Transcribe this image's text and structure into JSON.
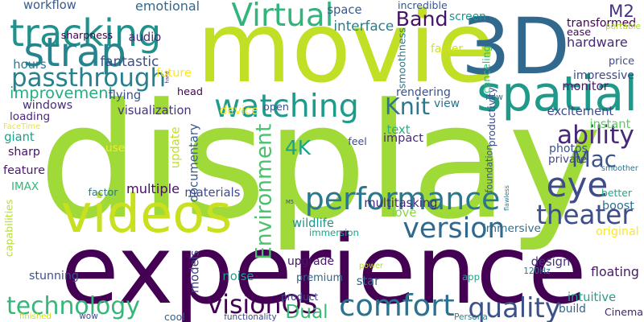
{
  "canvas": {
    "background": "#ffffff"
  },
  "words": [
    {
      "text": "display",
      "color": "#a0da39"
    },
    {
      "text": "experience",
      "color": "#440154"
    },
    {
      "text": "movie",
      "color": "#c0df25"
    },
    {
      "text": "3D",
      "color": "#31688e"
    },
    {
      "text": "videos",
      "color": "#c8e020"
    },
    {
      "text": "spatial",
      "color": "#1f9a8a"
    },
    {
      "text": "tracking",
      "color": "#20928c"
    },
    {
      "text": "strap",
      "color": "#25848e"
    },
    {
      "text": "Virtual",
      "color": "#31b57b"
    },
    {
      "text": "watching",
      "color": "#1e9b8a"
    },
    {
      "text": "performance",
      "color": "#2a788e"
    },
    {
      "text": "passthrough",
      "color": "#26818e"
    },
    {
      "text": "comfort",
      "color": "#2c728e"
    },
    {
      "text": "technology",
      "color": "#35b779"
    },
    {
      "text": "quality",
      "color": "#3b518b"
    },
    {
      "text": "version",
      "color": "#30698e"
    },
    {
      "text": "theater",
      "color": "#3d4e8a"
    },
    {
      "text": "visionOS",
      "color": "#440154"
    },
    {
      "text": "Environment",
      "color": "#4ac16d"
    },
    {
      "text": "eye",
      "color": "#3e4c8a"
    },
    {
      "text": "ability",
      "color": "#482979"
    },
    {
      "text": "Mac",
      "color": "#3b528b"
    },
    {
      "text": "Knit",
      "color": "#2a788e"
    },
    {
      "text": "Band",
      "color": "#471365"
    },
    {
      "text": "M2",
      "color": "#46337e"
    },
    {
      "text": "4K",
      "color": "#1fa088"
    },
    {
      "text": "Dual",
      "color": "#3bbb75"
    },
    {
      "text": "improvement",
      "color": "#26ad81"
    },
    {
      "text": "emotional",
      "color": "#31688e"
    },
    {
      "text": "workflow",
      "color": "#375a8c"
    },
    {
      "text": "sharpness",
      "color": "#440154"
    },
    {
      "text": "audio",
      "color": "#472c7a"
    },
    {
      "text": "hours",
      "color": "#2a788e"
    },
    {
      "text": "fantastic",
      "color": "#3c4f8a"
    },
    {
      "text": "future",
      "color": "#fde725"
    },
    {
      "text": "hand",
      "color": "#482878"
    },
    {
      "text": "interface",
      "color": "#277f8e"
    },
    {
      "text": "space",
      "color": "#38588c"
    },
    {
      "text": "incredible",
      "color": "#3a548c"
    },
    {
      "text": "smoothness",
      "color": "#2a788e"
    },
    {
      "text": "screen",
      "color": "#21918c"
    },
    {
      "text": "faster",
      "color": "#d2e21b"
    },
    {
      "text": "canceling",
      "color": "#38b977"
    },
    {
      "text": "transformed",
      "color": "#440154"
    },
    {
      "text": "ease",
      "color": "#46085c"
    },
    {
      "text": "portable",
      "color": "#b5de2b"
    },
    {
      "text": "hardware",
      "color": "#472a7a"
    },
    {
      "text": "impressive",
      "color": "#3e4989"
    },
    {
      "text": "monitor",
      "color": "#481a6c"
    },
    {
      "text": "price",
      "color": "#3e4a89"
    },
    {
      "text": "new",
      "color": "#2c728e"
    },
    {
      "text": "rendering",
      "color": "#3b528b"
    },
    {
      "text": "head",
      "color": "#440154"
    },
    {
      "text": "windows",
      "color": "#472d7b"
    },
    {
      "text": "flying",
      "color": "#3b528b"
    },
    {
      "text": "visualization",
      "color": "#46337e"
    },
    {
      "text": "device",
      "color": "#fde725"
    },
    {
      "text": "open",
      "color": "#3b528b"
    },
    {
      "text": "view",
      "color": "#2c728e"
    },
    {
      "text": "excitement",
      "color": "#3e4989"
    },
    {
      "text": "loading",
      "color": "#482677"
    },
    {
      "text": "FaceTime",
      "color": "#f1e51d"
    },
    {
      "text": "giant",
      "color": "#1f9e89"
    },
    {
      "text": "sharp",
      "color": "#471164"
    },
    {
      "text": "feature",
      "color": "#481b6d"
    },
    {
      "text": "IMAX",
      "color": "#35b779"
    },
    {
      "text": "use",
      "color": "#fde725"
    },
    {
      "text": "update",
      "color": "#c2df23"
    },
    {
      "text": "documentary",
      "color": "#375b8d"
    },
    {
      "text": "text",
      "color": "#27ad81"
    },
    {
      "text": "feel",
      "color": "#3e4a89"
    },
    {
      "text": "impact",
      "color": "#482878"
    },
    {
      "text": "productivity",
      "color": "#3c4f8a"
    },
    {
      "text": "instant",
      "color": "#5ec962"
    },
    {
      "text": "foundation",
      "color": "#3b528b"
    },
    {
      "text": "photos",
      "color": "#3b528b"
    },
    {
      "text": "private",
      "color": "#404588"
    },
    {
      "text": "smoother",
      "color": "#2c728e"
    },
    {
      "text": "flawless",
      "color": "#2a788e"
    },
    {
      "text": "better",
      "color": "#22a884"
    },
    {
      "text": "boost",
      "color": "#2d708e"
    },
    {
      "text": "factor",
      "color": "#2a788e"
    },
    {
      "text": "multiple",
      "color": "#470f62"
    },
    {
      "text": "materials",
      "color": "#3e4989"
    },
    {
      "text": "capabilities",
      "color": "#b8de29"
    },
    {
      "text": "wildlife",
      "color": "#21918c"
    },
    {
      "text": "M5",
      "color": "#3f4788"
    },
    {
      "text": "love",
      "color": "#86d549"
    },
    {
      "text": "multitasking",
      "color": "#472a7a"
    },
    {
      "text": "immersion",
      "color": "#1fa188"
    },
    {
      "text": "immersive",
      "color": "#2e6e8e"
    },
    {
      "text": "original",
      "color": "#fde725"
    },
    {
      "text": "upgrade",
      "color": "#481668"
    },
    {
      "text": "design",
      "color": "#46337e"
    },
    {
      "text": "stunning",
      "color": "#3b528b"
    },
    {
      "text": "models",
      "color": "#424086"
    },
    {
      "text": "noise",
      "color": "#1f9e89"
    },
    {
      "text": "power",
      "color": "#b5de2b"
    },
    {
      "text": "premium",
      "color": "#33638d"
    },
    {
      "text": "star",
      "color": "#31688e"
    },
    {
      "text": "app",
      "color": "#20a386"
    },
    {
      "text": "120Hz",
      "color": "#2a788e"
    },
    {
      "text": "floating",
      "color": "#481769"
    },
    {
      "text": "intuitive",
      "color": "#1fa188"
    },
    {
      "text": "product",
      "color": "#424086"
    },
    {
      "text": "build",
      "color": "#32648e"
    },
    {
      "text": "Cinema",
      "color": "#482173"
    },
    {
      "text": "finished",
      "color": "#cae11f"
    },
    {
      "text": "wow",
      "color": "#3e4989"
    },
    {
      "text": "cool",
      "color": "#33638d"
    },
    {
      "text": "functionality",
      "color": "#3e4989"
    },
    {
      "text": "Persona",
      "color": "#26828e"
    }
  ]
}
